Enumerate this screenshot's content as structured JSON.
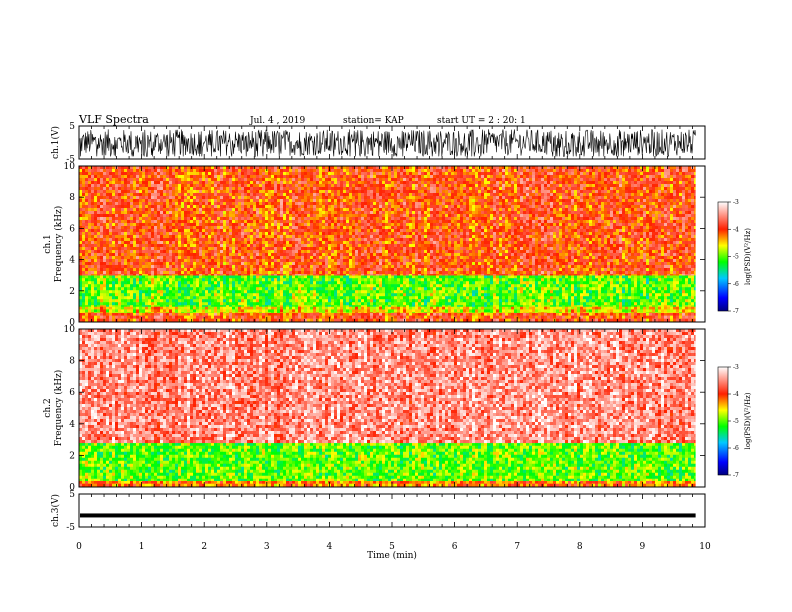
{
  "header": {
    "title": "VLF Spectra",
    "date": "Jul. 4 , 2019",
    "station": "station= KAP",
    "start_ut": "start UT =  2 : 20: 1"
  },
  "chart_data": [
    {
      "name": "ch1-waveform",
      "type": "line",
      "ylabel": "ch.1(V)",
      "ylim": [
        -5,
        5
      ],
      "yticks": [
        "5",
        "-5"
      ],
      "xlim": [
        0,
        10
      ],
      "amplitude_range_v": [
        -4,
        4
      ]
    },
    {
      "name": "ch1-spectrogram",
      "type": "heatmap",
      "ylabel": "ch.1\nFrequency (kHz)",
      "ylim": [
        0,
        10
      ],
      "yticks": [
        "0",
        "2",
        "4",
        "6",
        "8",
        "10"
      ],
      "xlim": [
        0,
        9.85
      ],
      "bands": [
        {
          "freq_khz": [
            0,
            0.6
          ],
          "log_psd": -4.0
        },
        {
          "freq_khz": [
            0.6,
            1.0
          ],
          "log_psd": -4.6
        },
        {
          "freq_khz": [
            1.0,
            3.0
          ],
          "log_psd": -5.0
        },
        {
          "freq_khz": [
            3.0,
            10.0
          ],
          "log_psd": -4.0
        }
      ],
      "colorbar": {
        "label": "log(PSD)(V²/Hz)",
        "min": -7,
        "max": -3,
        "ticks": [
          "-3",
          "-4",
          "-5",
          "-6",
          "-7"
        ]
      }
    },
    {
      "name": "ch2-spectrogram",
      "type": "heatmap",
      "ylabel": "ch.2\nFrequency (kHz)",
      "ylim": [
        0,
        10
      ],
      "yticks": [
        "0",
        "2",
        "4",
        "6",
        "8",
        "10"
      ],
      "xlim": [
        0,
        9.85
      ],
      "bands": [
        {
          "freq_khz": [
            0,
            0.4
          ],
          "log_psd": -4.2
        },
        {
          "freq_khz": [
            0.4,
            2.8
          ],
          "log_psd": -5.0
        },
        {
          "freq_khz": [
            2.8,
            10.0
          ],
          "log_psd": -3.5
        }
      ],
      "colorbar": {
        "label": "log(PSD)(V²/Hz)",
        "min": -7,
        "max": -3,
        "ticks": [
          "-3",
          "-4",
          "-5",
          "-6",
          "-7"
        ]
      }
    },
    {
      "name": "ch3-waveform",
      "type": "line",
      "ylabel": "ch.3(V)",
      "ylim": [
        -5,
        5
      ],
      "yticks": [
        "5",
        "-5"
      ],
      "xlim": [
        0,
        10
      ],
      "constant_v": -1.5
    }
  ],
  "xaxis": {
    "label": "Time (min)",
    "min": 0,
    "max": 10,
    "ticks": [
      "0",
      "1",
      "2",
      "3",
      "4",
      "5",
      "6",
      "7",
      "8",
      "9",
      "10"
    ]
  }
}
